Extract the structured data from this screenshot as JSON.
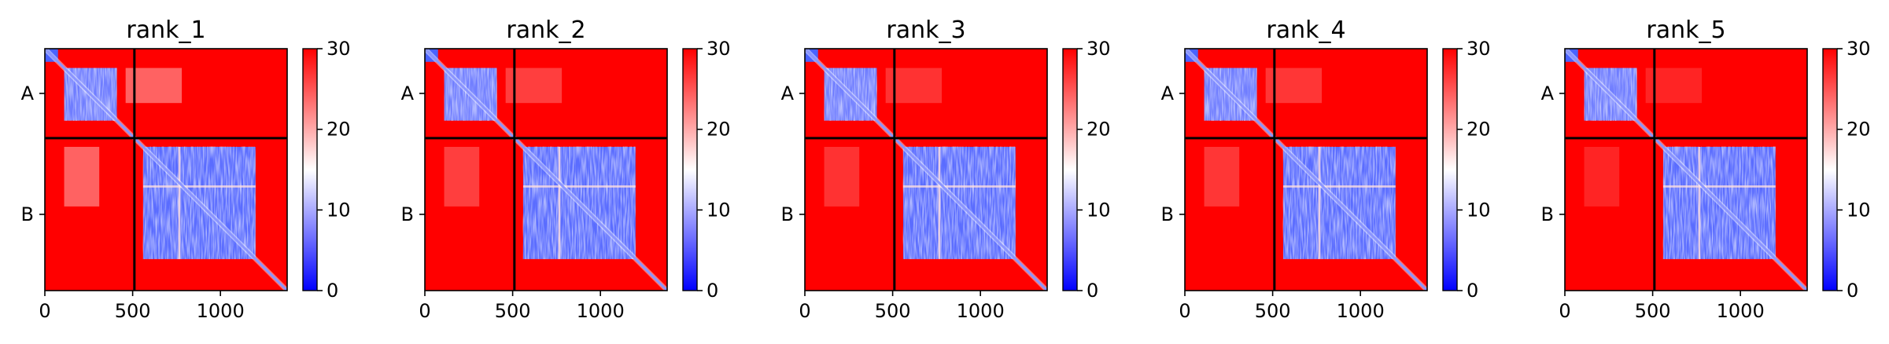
{
  "figure": {
    "colorbar": {
      "colormap": "bwr",
      "range": [
        0,
        30
      ],
      "ticks": [
        0,
        10,
        20,
        30
      ],
      "colors": {
        "low": "#0000ff",
        "mid": "#ffffff",
        "high": "#ff0000"
      }
    },
    "chart_data": [
      {
        "type": "heatmap",
        "title": "rank_1",
        "x_ticks": [
          0,
          500,
          1000
        ],
        "xlim": [
          0,
          1380
        ],
        "chains": [
          {
            "label": "A",
            "start": 0,
            "end": 510
          },
          {
            "label": "B",
            "start": 510,
            "end": 1380
          }
        ],
        "chain_boundary": 510,
        "value_range": [
          0,
          30
        ]
      },
      {
        "type": "heatmap",
        "title": "rank_2",
        "x_ticks": [
          0,
          500,
          1000
        ],
        "xlim": [
          0,
          1380
        ],
        "chains": [
          {
            "label": "A",
            "start": 0,
            "end": 510
          },
          {
            "label": "B",
            "start": 510,
            "end": 1380
          }
        ],
        "chain_boundary": 510,
        "value_range": [
          0,
          30
        ]
      },
      {
        "type": "heatmap",
        "title": "rank_3",
        "x_ticks": [
          0,
          500,
          1000
        ],
        "xlim": [
          0,
          1380
        ],
        "chains": [
          {
            "label": "A",
            "start": 0,
            "end": 510
          },
          {
            "label": "B",
            "start": 510,
            "end": 1380
          }
        ],
        "chain_boundary": 510,
        "value_range": [
          0,
          30
        ]
      },
      {
        "type": "heatmap",
        "title": "rank_4",
        "x_ticks": [
          0,
          500,
          1000
        ],
        "xlim": [
          0,
          1380
        ],
        "chains": [
          {
            "label": "A",
            "start": 0,
            "end": 510
          },
          {
            "label": "B",
            "start": 510,
            "end": 1380
          }
        ],
        "chain_boundary": 510,
        "value_range": [
          0,
          30
        ]
      },
      {
        "type": "heatmap",
        "title": "rank_5",
        "x_ticks": [
          0,
          500,
          1000
        ],
        "xlim": [
          0,
          1380
        ],
        "chains": [
          {
            "label": "A",
            "start": 0,
            "end": 510
          },
          {
            "label": "B",
            "start": 510,
            "end": 1380
          }
        ],
        "chain_boundary": 510,
        "value_range": [
          0,
          30
        ]
      }
    ]
  }
}
